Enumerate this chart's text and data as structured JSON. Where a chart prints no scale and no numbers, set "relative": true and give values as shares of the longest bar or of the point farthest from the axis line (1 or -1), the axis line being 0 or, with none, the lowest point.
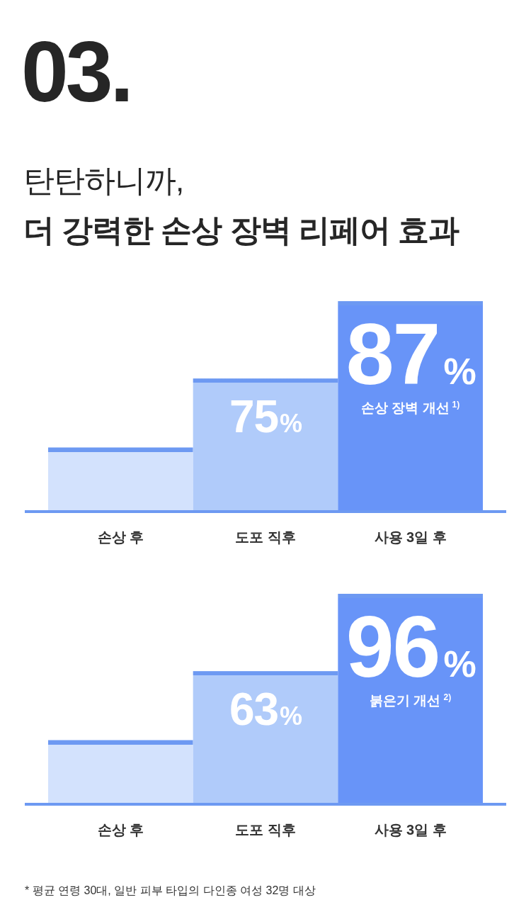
{
  "chart_data": [
    {
      "type": "bar",
      "title": "탄탄하니까,\n더 강력한 손상 장벽 리페어 효과",
      "categories": [
        "손상 후",
        "도포 직후",
        "사용 3일 후"
      ],
      "values": [
        0.3,
        0.63,
        1
      ],
      "relative": true,
      "colors": [
        "#d3e2fd",
        "#b0cbfa",
        "#6894f8"
      ],
      "annotations": [
        "03.",
        "75%",
        "87%",
        "손상 장벽 개선$^{1)}$"
      ]
    },
    {
      "type": "bar",
      "categories": [
        "손상 후",
        "도포 직후",
        "사용 3일 후"
      ],
      "values": [
        0.3,
        0.63,
        1
      ],
      "relative": true,
      "colors": [
        "#d3e2fd",
        "#b0cbfa",
        "#6894f8"
      ],
      "annotations": [
        "63%",
        "96%",
        "붉은기 개선$^{2)}$",
        "* 평균 연령 30대, 일반 피부 타입의 다인종 여성 32명 대상"
      ]
    }
  ]
}
